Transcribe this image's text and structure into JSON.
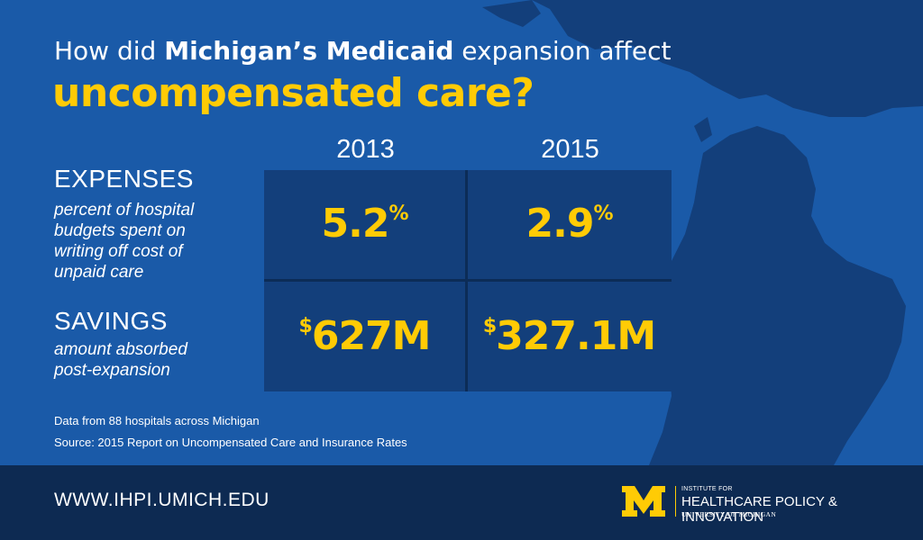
{
  "title": {
    "line1_pre": "How did ",
    "line1_bold": "Michigan’s Medicaid",
    "line1_post": " expansion affect",
    "line2": "uncompensated care?"
  },
  "years": [
    "2013",
    "2015"
  ],
  "rows": {
    "expenses": {
      "heading": "EXPENSES",
      "desc": [
        "percent of hospital",
        "budgets spent on",
        "writing off cost of",
        "unpaid care"
      ],
      "values": [
        {
          "main": "5.2",
          "suffix": "%"
        },
        {
          "main": "2.9",
          "suffix": "%"
        }
      ]
    },
    "savings": {
      "heading": "SAVINGS",
      "desc": [
        "amount absorbed",
        "post-expansion"
      ],
      "values": [
        {
          "prefix": "$",
          "main": "627M"
        },
        {
          "prefix": "$",
          "main": "327.1M"
        }
      ]
    }
  },
  "notes": [
    "Data from 88 hospitals across Michigan",
    "Source: 2015 Report on Uncompensated Care and Insurance Rates"
  ],
  "footer": {
    "url": "WWW.IHPI.UMICH.EDU",
    "logo_small": "INSTITUTE FOR",
    "logo_big": "HEALTHCARE POLICY & INNOVATION",
    "logo_uni": "UNIVERSITY OF MICHIGAN"
  },
  "colors": {
    "background": "#1a5aa8",
    "map": "#133f7b",
    "accent": "#ffcb05",
    "footer": "#0d2a52"
  }
}
